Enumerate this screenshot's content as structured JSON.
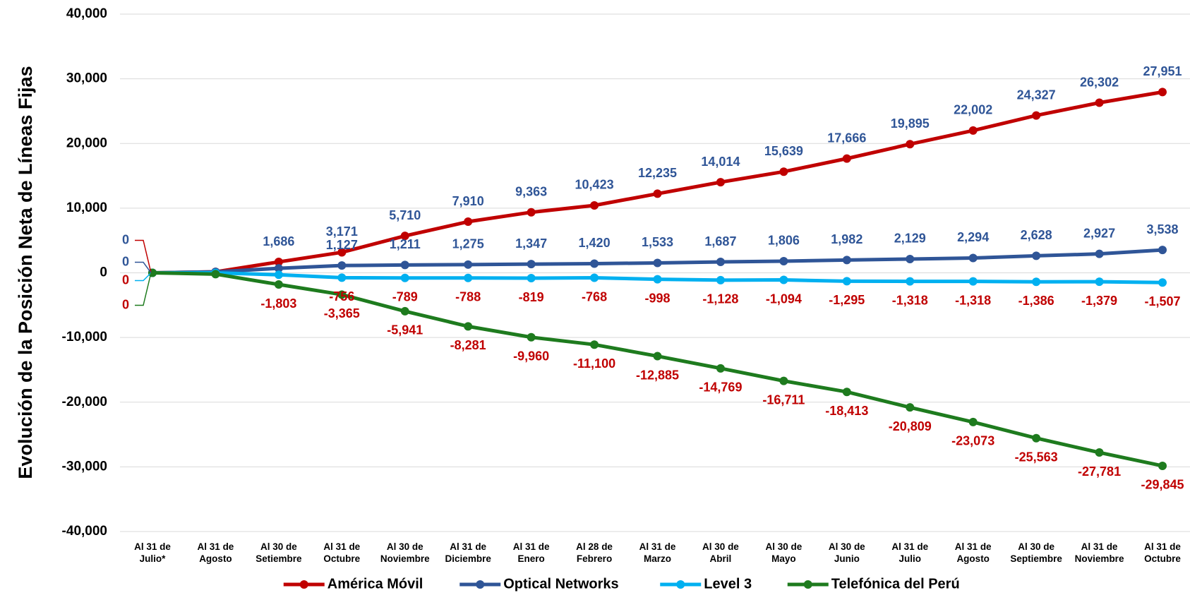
{
  "chart_data": {
    "type": "line",
    "y_label": "Evolución de la Posición Neta de Líneas Fijas",
    "categories": [
      "Al 31 de\nJulio*",
      "Al 31 de\nAgosto",
      "Al 30 de\nSetiembre",
      "Al 31 de\nOctubre",
      "Al 30 de\nNoviembre",
      "Al 31 de\nDiciembre",
      "Al 31 de\nEnero",
      "Al 28 de\nFebrero",
      "Al 31 de\nMarzo",
      "Al 30 de\nAbril",
      "Al 30 de\nMayo",
      "Al 30 de\nJunio",
      "Al 31 de\nJulio",
      "Al 31 de\nAgosto",
      "Al 30 de\nSeptiembre",
      "Al 31 de\nNoviembre",
      "Al 31 de\nOctubre"
    ],
    "series": [
      {
        "name": "América Móvil",
        "color": "#C00000",
        "label_color": "#2F5597",
        "label_position": "above",
        "values": [
          0,
          150,
          1686,
          3171,
          5710,
          7910,
          9363,
          10423,
          12235,
          14014,
          15639,
          17666,
          19895,
          22002,
          24327,
          26302,
          27951
        ],
        "value_labels": [
          "0",
          null,
          "1,686",
          "3,171",
          "5,710",
          "7,910",
          "9,363",
          "10,423",
          "12,235",
          "14,014",
          "15,639",
          "17,666",
          "19,895",
          "22,002",
          "24,327",
          "26,302",
          "27,951"
        ]
      },
      {
        "name": "Optical Networks",
        "color": "#2F5597",
        "label_color": "#2F5597",
        "label_position": "above",
        "values": [
          0,
          150,
          700,
          1127,
          1211,
          1275,
          1347,
          1420,
          1533,
          1687,
          1806,
          1982,
          2129,
          2294,
          2628,
          2927,
          3538
        ],
        "value_labels": [
          "0",
          null,
          null,
          "1,127",
          "1,211",
          "1,275",
          "1,347",
          "1,420",
          "1,533",
          "1,687",
          "1,806",
          "1,982",
          "2,129",
          "2,294",
          "2,628",
          "2,927",
          "3,538"
        ]
      },
      {
        "name": "Level 3",
        "color": "#00B0F0",
        "label_color": "#C00000",
        "label_position": "below",
        "values": [
          0,
          0,
          -300,
          -756,
          -789,
          -788,
          -819,
          -768,
          -998,
          -1128,
          -1094,
          -1295,
          -1318,
          -1318,
          -1386,
          -1379,
          -1507
        ],
        "value_labels": [
          "0",
          null,
          null,
          "-756",
          "-789",
          "-788",
          "-819",
          "-768",
          "-998",
          "-1,128",
          "-1,094",
          "-1,295",
          "-1,318",
          "-1,318",
          "-1,386",
          "-1,379",
          "-1,507"
        ]
      },
      {
        "name": "Telefónica del Perú",
        "color": "#1E7B1E",
        "label_color": "#C00000",
        "label_position": "below",
        "values": [
          0,
          -200,
          -1803,
          -3365,
          -5941,
          -8281,
          -9960,
          -11100,
          -12885,
          -14769,
          -16711,
          -18413,
          -20809,
          -23073,
          -25563,
          -27781,
          -29845
        ],
        "value_labels": [
          "0",
          null,
          "-1,803",
          "-3,365",
          "-5,941",
          "-8,281",
          "-9,960",
          "-11,100",
          "-12,885",
          "-14,769",
          "-16,711",
          "-18,413",
          "-20,809",
          "-23,073",
          "-25,563",
          "-27,781",
          "-29,845"
        ]
      }
    ],
    "ylim": [
      -40000,
      40000
    ],
    "yticks": [
      {
        "value": -40000,
        "label": "-40,000"
      },
      {
        "value": -30000,
        "label": "-30,000"
      },
      {
        "value": -20000,
        "label": "-20,000"
      },
      {
        "value": -10000,
        "label": "-10,000"
      },
      0,
      {
        "value": 10000,
        "label": "10,000"
      },
      {
        "value": 20000,
        "label": "20,000"
      },
      {
        "value": 30000,
        "label": "30,000"
      },
      {
        "value": 40000,
        "label": "40,000"
      }
    ],
    "grid": true,
    "legend": "bottom"
  }
}
